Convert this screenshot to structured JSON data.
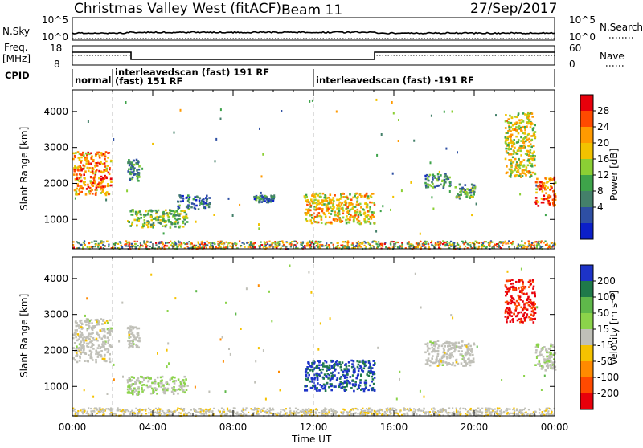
{
  "header": {
    "title": "Christmas Valley West (fitACF)",
    "beam": "Beam 11",
    "date": "27/Sep/2017"
  },
  "panel_labels": {
    "nsky": "N.Sky",
    "freq_line1": "Freq.",
    "freq_line2": "[MHz]",
    "cpid": "CPID",
    "nsearch": "N.Search",
    "nave": "Nave"
  },
  "nsky_axis": {
    "top": "10^5",
    "bottom": "10^0"
  },
  "nsearch_axis": {
    "top": "10^5",
    "bottom": "10^0"
  },
  "freq_axis": {
    "top": "18",
    "bottom": "8"
  },
  "nave_axis": {
    "top": "60",
    "bottom": "0"
  },
  "cpid_segments": [
    {
      "label": "normal"
    },
    {
      "label": "interleavedscan (fast) 191 RF"
    },
    {
      "label": "(fast) 151 RF"
    },
    {
      "label": "interleavedscan (fast) -191 RF"
    }
  ],
  "colorbars": {
    "power": {
      "label": "Power [dB]",
      "ticks": [
        "28",
        "24",
        "20",
        "16",
        "12",
        "8",
        "4"
      ],
      "colors": [
        "#e8000b",
        "#ff4a00",
        "#ff9a00",
        "#f2c200",
        "#8bcf34",
        "#3ea34a",
        "#44806a",
        "#2e4fa3",
        "#0b1fc9"
      ]
    },
    "velocity": {
      "label": "Velocity [m s⁻¹]",
      "ticks": [
        "200",
        "100",
        "50",
        "15",
        "-15",
        "-50",
        "-100",
        "-200"
      ],
      "colors": [
        "#1d33c8",
        "#1f7a4a",
        "#5fb84a",
        "#8bd34a",
        "#c0c0b8",
        "#f5c200",
        "#ff8a00",
        "#ff4a00",
        "#e8000b"
      ]
    }
  },
  "chart_data": [
    {
      "type": "heatmap",
      "name": "power",
      "xlabel": "Time UT",
      "ylabel": "Slant Range [km]",
      "x_ticks": [
        "00:00",
        "04:00",
        "08:00",
        "12:00",
        "16:00",
        "20:00",
        "00:00"
      ],
      "y_ticks": [
        "1000",
        "2000",
        "3000",
        "4000"
      ],
      "xlim_hours": [
        0,
        24
      ],
      "ylim_km": [
        180,
        4600
      ],
      "colorbar_range_db": [
        0,
        32
      ],
      "dashed_mode_change_hours": [
        2.0,
        12.0
      ],
      "echo_regions": [
        {
          "t_start": 0.0,
          "t_end": 1.9,
          "range_low": 1700,
          "range_high": 2900,
          "typical_value_db": 24
        },
        {
          "t_start": 2.7,
          "t_end": 5.7,
          "range_low": 800,
          "range_high": 1300,
          "typical_value_db": 14
        },
        {
          "t_start": 2.7,
          "t_end": 3.3,
          "range_low": 2100,
          "range_high": 2700,
          "typical_value_db": 10
        },
        {
          "t_start": 5.2,
          "t_end": 6.8,
          "range_low": 1300,
          "range_high": 1700,
          "typical_value_db": 8
        },
        {
          "t_start": 9.0,
          "t_end": 10.0,
          "range_low": 1500,
          "range_high": 1700,
          "typical_value_db": 8
        },
        {
          "t_start": 11.5,
          "t_end": 15.0,
          "range_low": 900,
          "range_high": 1750,
          "typical_value_db": 20
        },
        {
          "t_start": 17.5,
          "t_end": 18.8,
          "range_low": 1900,
          "range_high": 2300,
          "typical_value_db": 10
        },
        {
          "t_start": 19.0,
          "t_end": 20.0,
          "range_low": 1600,
          "range_high": 2000,
          "typical_value_db": 12
        },
        {
          "t_start": 21.5,
          "t_end": 23.0,
          "range_low": 2200,
          "range_high": 4000,
          "typical_value_db": 18
        },
        {
          "t_start": 23.0,
          "t_end": 24.0,
          "range_low": 1400,
          "range_high": 2200,
          "typical_value_db": 24
        }
      ]
    },
    {
      "type": "heatmap",
      "name": "velocity",
      "xlabel": "Time UT",
      "ylabel": "Slant Range [km]",
      "x_ticks": [
        "00:00",
        "04:00",
        "08:00",
        "12:00",
        "16:00",
        "20:00",
        "00:00"
      ],
      "y_ticks": [
        "1000",
        "2000",
        "3000",
        "4000"
      ],
      "xlim_hours": [
        0,
        24
      ],
      "ylim_km": [
        180,
        4600
      ],
      "colorbar_range_ms": [
        -250,
        250
      ],
      "dashed_mode_change_hours": [
        2.0,
        12.0
      ],
      "echo_regions": [
        {
          "t_start": 0.0,
          "t_end": 1.9,
          "range_low": 1700,
          "range_high": 2900,
          "typical_value_ms": 0
        },
        {
          "t_start": 2.7,
          "t_end": 5.7,
          "range_low": 800,
          "range_high": 1300,
          "typical_value_ms": 30
        },
        {
          "t_start": 2.7,
          "t_end": 3.3,
          "range_low": 2100,
          "range_high": 2700,
          "typical_value_ms": 0
        },
        {
          "t_start": 11.5,
          "t_end": 15.0,
          "range_low": 900,
          "range_high": 1750,
          "typical_value_ms": 200
        },
        {
          "t_start": 17.5,
          "t_end": 20.0,
          "range_low": 1600,
          "range_high": 2300,
          "typical_value_ms": 0
        },
        {
          "t_start": 21.5,
          "t_end": 23.0,
          "range_low": 2800,
          "range_high": 4000,
          "typical_value_ms": -200
        },
        {
          "t_start": 23.0,
          "t_end": 24.0,
          "range_low": 1400,
          "range_high": 2200,
          "typical_value_ms": 15
        }
      ]
    }
  ]
}
